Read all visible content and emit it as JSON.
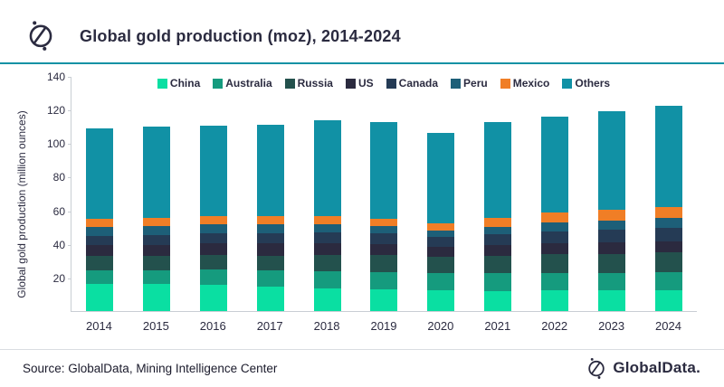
{
  "header": {
    "title": "Global gold production (moz), 2014-2024"
  },
  "footer": {
    "source": "Source: GlobalData, Mining Intelligence Center",
    "brand": "GlobalData."
  },
  "icons": {
    "header_logo": "globaldata-compass-icon",
    "footer_logo": "globaldata-compass-icon"
  },
  "colors": {
    "accent_rule": "#1292a5",
    "title_text": "#2b2b40",
    "axis_line": "#c9ced4",
    "footer_divider": "#d9dde1"
  },
  "chart_data": {
    "type": "bar",
    "stacked": true,
    "title": "Global gold production (moz), 2014-2024",
    "xlabel": "",
    "ylabel": "Global gold production (million ounces)",
    "ylim": [
      0,
      140
    ],
    "yticks": [
      20,
      40,
      60,
      80,
      100,
      120,
      140
    ],
    "grid": false,
    "legend_position": "top",
    "categories": [
      "2014",
      "2015",
      "2016",
      "2017",
      "2018",
      "2019",
      "2020",
      "2021",
      "2022",
      "2023",
      "2024"
    ],
    "series": [
      {
        "name": "China",
        "color": "#0adfa2",
        "values": [
          16.4,
          16.1,
          15.9,
          14.8,
          13.5,
          12.8,
          12.2,
          12.1,
          12.3,
          12.4,
          12.6
        ]
      },
      {
        "name": "Australia",
        "color": "#159b7e",
        "values": [
          8.1,
          8.3,
          8.7,
          9.2,
          10.1,
          10.6,
          10.4,
          10.4,
          10.5,
          10.4,
          10.5
        ]
      },
      {
        "name": "Russia",
        "color": "#23514d",
        "values": [
          8.3,
          8.5,
          8.8,
          9.0,
          9.6,
          10.0,
          9.7,
          10.2,
          11.0,
          11.4,
          11.7
        ]
      },
      {
        "name": "US",
        "color": "#2b2a3f",
        "values": [
          6.5,
          6.7,
          7.0,
          7.3,
          7.4,
          6.7,
          6.2,
          6.4,
          6.5,
          6.7,
          6.9
        ]
      },
      {
        "name": "Canada",
        "color": "#253b55",
        "values": [
          5.4,
          5.6,
          5.7,
          5.8,
          6.2,
          6.1,
          5.7,
          6.6,
          7.2,
          7.7,
          8.0
        ]
      },
      {
        "name": "Peru",
        "color": "#1d5f78",
        "values": [
          5.2,
          5.3,
          5.4,
          5.4,
          5.0,
          4.6,
          3.8,
          4.6,
          5.2,
          5.5,
          5.7
        ]
      },
      {
        "name": "Mexico",
        "color": "#f07e26",
        "values": [
          5.1,
          5.2,
          5.3,
          5.1,
          4.8,
          4.4,
          4.2,
          5.0,
          5.8,
          6.2,
          6.5
        ]
      },
      {
        "name": "Others",
        "color": "#1191a5",
        "values": [
          53.5,
          54.1,
          53.7,
          54.4,
          56.9,
          57.3,
          53.8,
          57.0,
          57.3,
          59.0,
          60.6
        ]
      }
    ],
    "totals": [
      108.5,
      109.8,
      110.5,
      111.0,
      113.5,
      112.5,
      106.0,
      112.3,
      115.8,
      119.3,
      122.5
    ]
  }
}
